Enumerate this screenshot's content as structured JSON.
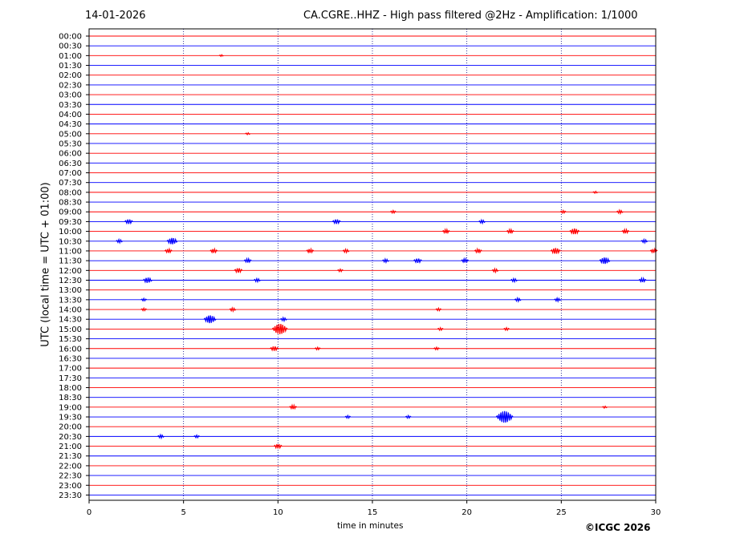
{
  "header": {
    "date": "14-01-2026",
    "title": "CA.CGRE..HHZ - High pass filtered @2Hz - Amplification: 1/1000"
  },
  "footer": {
    "copyright": "©ICGC 2026"
  },
  "chart_data": {
    "type": "line",
    "title": "CA.CGRE..HHZ - High pass filtered @2Hz - Amplification: 1/1000",
    "xlabel": "time in minutes",
    "ylabel": "UTC (local time = UTC + 01:00)",
    "xlim": [
      0,
      30
    ],
    "x_ticks": [
      0,
      5,
      10,
      15,
      20,
      25,
      30
    ],
    "grid": "vertical dotted lines at x ticks",
    "row_labels": [
      "00:00",
      "00:30",
      "01:00",
      "01:30",
      "02:00",
      "02:30",
      "03:00",
      "03:30",
      "04:00",
      "04:30",
      "05:00",
      "05:30",
      "06:00",
      "06:30",
      "07:00",
      "07:30",
      "08:00",
      "08:30",
      "09:00",
      "09:30",
      "10:00",
      "10:30",
      "11:00",
      "11:30",
      "12:00",
      "12:30",
      "13:00",
      "13:30",
      "14:00",
      "14:30",
      "15:00",
      "15:30",
      "16:00",
      "16:30",
      "17:00",
      "17:30",
      "18:00",
      "18:30",
      "19:00",
      "19:30",
      "20:00",
      "20:30",
      "21:00",
      "21:30",
      "22:00",
      "22:30",
      "23:00",
      "23:30"
    ],
    "trace_colors": [
      "#ff0000",
      "#0000ff"
    ],
    "events": [
      {
        "row": "01:00",
        "minute": 7.0,
        "amplitude": 0.12
      },
      {
        "row": "05:00",
        "minute": 8.4,
        "amplitude": 0.15
      },
      {
        "row": "08:00",
        "minute": 26.8,
        "amplitude": 0.15
      },
      {
        "row": "09:00",
        "minute": 16.1,
        "amplitude": 0.2
      },
      {
        "row": "09:00",
        "minute": 25.1,
        "amplitude": 0.2
      },
      {
        "row": "09:00",
        "minute": 28.1,
        "amplitude": 0.25
      },
      {
        "row": "09:30",
        "minute": 2.1,
        "amplitude": 0.35
      },
      {
        "row": "09:30",
        "minute": 13.1,
        "amplitude": 0.35
      },
      {
        "row": "09:30",
        "minute": 20.8,
        "amplitude": 0.25
      },
      {
        "row": "10:00",
        "minute": 18.9,
        "amplitude": 0.3
      },
      {
        "row": "10:00",
        "minute": 22.3,
        "amplitude": 0.3
      },
      {
        "row": "10:00",
        "minute": 25.7,
        "amplitude": 0.45
      },
      {
        "row": "10:00",
        "minute": 28.4,
        "amplitude": 0.3
      },
      {
        "row": "10:30",
        "minute": 1.6,
        "amplitude": 0.25
      },
      {
        "row": "10:30",
        "minute": 4.4,
        "amplitude": 0.5
      },
      {
        "row": "10:30",
        "minute": 29.4,
        "amplitude": 0.25
      },
      {
        "row": "11:00",
        "minute": 4.2,
        "amplitude": 0.3
      },
      {
        "row": "11:00",
        "minute": 6.6,
        "amplitude": 0.3
      },
      {
        "row": "11:00",
        "minute": 11.7,
        "amplitude": 0.3
      },
      {
        "row": "11:00",
        "minute": 13.6,
        "amplitude": 0.25
      },
      {
        "row": "11:00",
        "minute": 20.6,
        "amplitude": 0.3
      },
      {
        "row": "11:00",
        "minute": 24.7,
        "amplitude": 0.45
      },
      {
        "row": "11:00",
        "minute": 29.9,
        "amplitude": 0.3
      },
      {
        "row": "11:30",
        "minute": 8.4,
        "amplitude": 0.3
      },
      {
        "row": "11:30",
        "minute": 15.7,
        "amplitude": 0.25
      },
      {
        "row": "11:30",
        "minute": 17.4,
        "amplitude": 0.35
      },
      {
        "row": "11:30",
        "minute": 19.9,
        "amplitude": 0.3
      },
      {
        "row": "11:30",
        "minute": 27.3,
        "amplitude": 0.5
      },
      {
        "row": "12:00",
        "minute": 7.9,
        "amplitude": 0.35
      },
      {
        "row": "12:00",
        "minute": 13.3,
        "amplitude": 0.2
      },
      {
        "row": "12:00",
        "minute": 21.5,
        "amplitude": 0.25
      },
      {
        "row": "12:30",
        "minute": 3.1,
        "amplitude": 0.4
      },
      {
        "row": "12:30",
        "minute": 8.9,
        "amplitude": 0.25
      },
      {
        "row": "12:30",
        "minute": 22.5,
        "amplitude": 0.25
      },
      {
        "row": "12:30",
        "minute": 29.3,
        "amplitude": 0.3
      },
      {
        "row": "13:30",
        "minute": 2.9,
        "amplitude": 0.2
      },
      {
        "row": "13:30",
        "minute": 22.7,
        "amplitude": 0.25
      },
      {
        "row": "13:30",
        "minute": 24.8,
        "amplitude": 0.25
      },
      {
        "row": "14:00",
        "minute": 2.9,
        "amplitude": 0.2
      },
      {
        "row": "14:00",
        "minute": 7.6,
        "amplitude": 0.25
      },
      {
        "row": "14:00",
        "minute": 18.5,
        "amplitude": 0.2
      },
      {
        "row": "14:30",
        "minute": 6.4,
        "amplitude": 0.6
      },
      {
        "row": "14:30",
        "minute": 10.3,
        "amplitude": 0.25
      },
      {
        "row": "15:00",
        "minute": 10.1,
        "amplitude": 0.8
      },
      {
        "row": "15:00",
        "minute": 18.6,
        "amplitude": 0.2
      },
      {
        "row": "15:00",
        "minute": 22.1,
        "amplitude": 0.2
      },
      {
        "row": "16:00",
        "minute": 9.8,
        "amplitude": 0.35
      },
      {
        "row": "16:00",
        "minute": 12.1,
        "amplitude": 0.2
      },
      {
        "row": "16:00",
        "minute": 18.4,
        "amplitude": 0.2
      },
      {
        "row": "19:00",
        "minute": 10.8,
        "amplitude": 0.3
      },
      {
        "row": "19:00",
        "minute": 27.3,
        "amplitude": 0.15
      },
      {
        "row": "19:30",
        "minute": 13.7,
        "amplitude": 0.2
      },
      {
        "row": "19:30",
        "minute": 16.9,
        "amplitude": 0.2
      },
      {
        "row": "19:30",
        "minute": 22.0,
        "amplitude": 0.9
      },
      {
        "row": "20:30",
        "minute": 3.8,
        "amplitude": 0.25
      },
      {
        "row": "20:30",
        "minute": 5.7,
        "amplitude": 0.2
      },
      {
        "row": "21:00",
        "minute": 10.0,
        "amplitude": 0.35
      }
    ]
  }
}
